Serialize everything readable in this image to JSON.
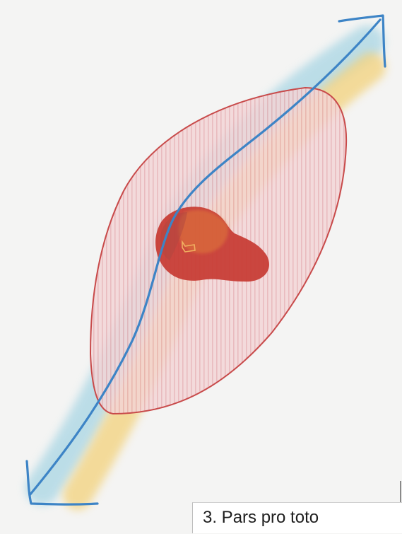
{
  "caption": {
    "text": "3. Pars pro toto"
  },
  "colors": {
    "background": "#f4f4f3",
    "outer-shape-fill": "#f0cdd0",
    "outer-shape-stroke": "#c84a4a",
    "blue-arrow": "#3d84c6",
    "blue-band": "#a9d6e4",
    "yellow-band": "#f3d27c",
    "inner-blob": "#c73a32",
    "inner-blob-orange": "#e07a3a"
  }
}
